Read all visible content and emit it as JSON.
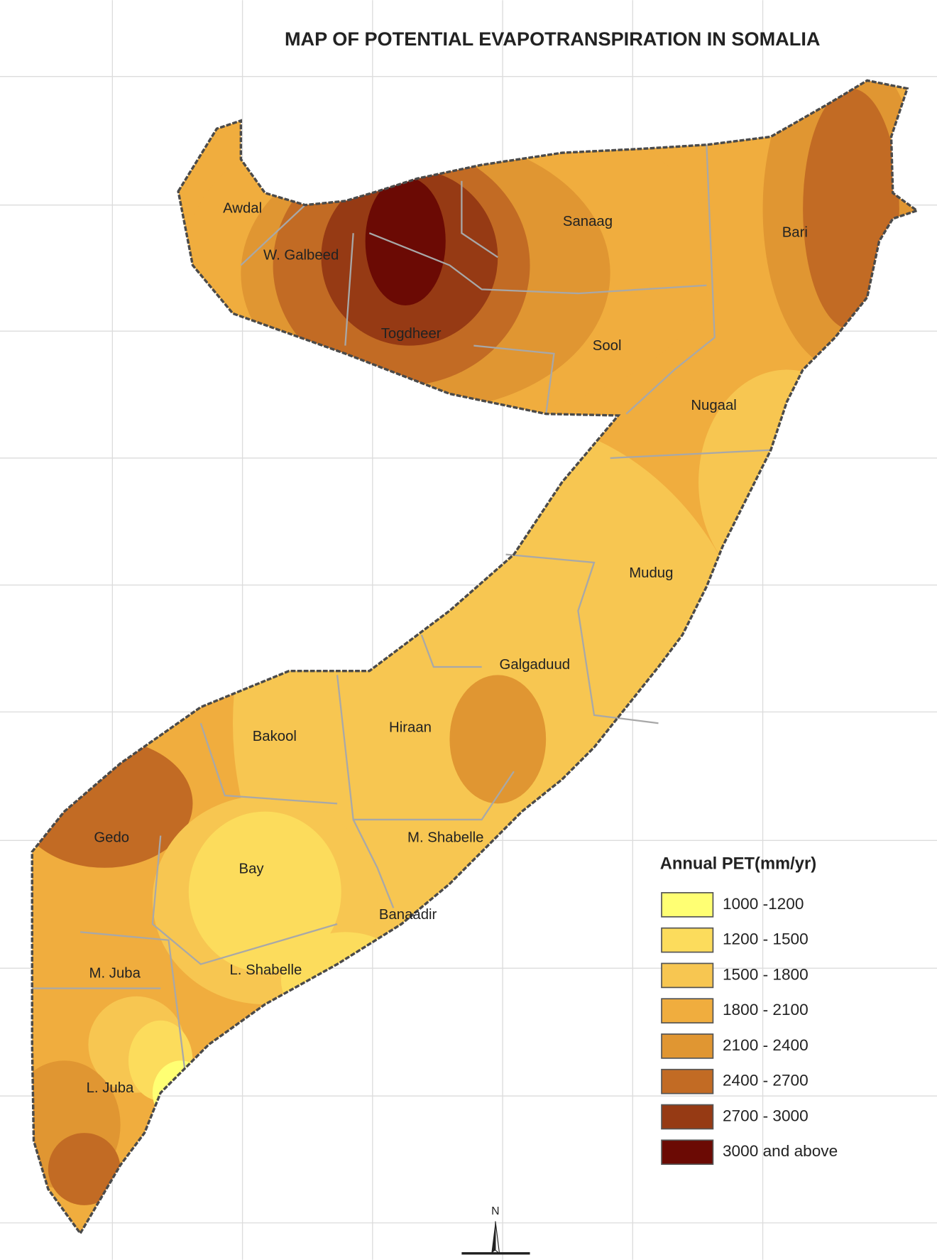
{
  "title": "MAP OF POTENTIAL EVAPOTRANSPIRATION IN SOMALIA",
  "regions": [
    {
      "label": "Awdal"
    },
    {
      "label": "W. Galbeed"
    },
    {
      "label": "Togdheer"
    },
    {
      "label": "Sanaag"
    },
    {
      "label": "Sool"
    },
    {
      "label": "Bari"
    },
    {
      "label": "Nugaal"
    },
    {
      "label": "Mudug"
    },
    {
      "label": "Galgaduud"
    },
    {
      "label": "Hiraan"
    },
    {
      "label": "Bakool"
    },
    {
      "label": "Gedo"
    },
    {
      "label": "M. Shabelle"
    },
    {
      "label": "Bay"
    },
    {
      "label": "Banaadir"
    },
    {
      "label": "M. Juba"
    },
    {
      "label": "L.  Shabelle"
    },
    {
      "label": "L. Juba"
    }
  ],
  "legend": {
    "title": "Annual PET(mm/yr)",
    "items": [
      {
        "label": "1000 -1200",
        "color": "#ffff73"
      },
      {
        "label": "1200 - 1500",
        "color": "#fcdc5c"
      },
      {
        "label": "1500 - 1800",
        "color": "#f7c651"
      },
      {
        "label": "1800 - 2100",
        "color": "#f0ad3e"
      },
      {
        "label": "2100 - 2400",
        "color": "#e09632"
      },
      {
        "label": "2400 - 2700",
        "color": "#c26b24"
      },
      {
        "label": "2700 - 3000",
        "color": "#963a14"
      },
      {
        "label": "3000 and above",
        "color": "#6b0a04"
      }
    ]
  },
  "north_arrow": "N"
}
